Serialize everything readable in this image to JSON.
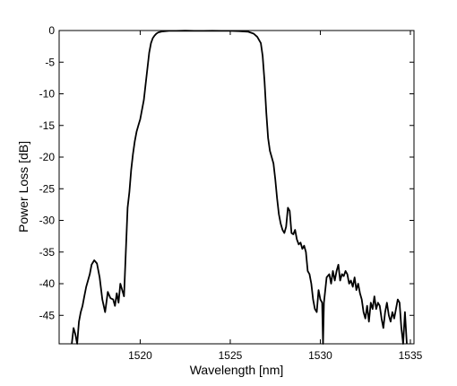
{
  "chart_data": {
    "type": "line",
    "title": "",
    "xlabel": "Wavelength [nm]",
    "ylabel": "Power Loss [dB]",
    "xlim": [
      1515.5,
      1535.2
    ],
    "ylim": [
      -49.5,
      0
    ],
    "xticks": [
      1520,
      1525,
      1530,
      1535
    ],
    "xtick_labels": [
      "1520",
      "1525",
      "1530",
      "1535"
    ],
    "yticks": [
      0,
      -5,
      -10,
      -15,
      -20,
      -25,
      -30,
      -35,
      -40,
      -45
    ],
    "ytick_labels": [
      "0",
      "-5",
      "-10",
      "-15",
      "-20",
      "-25",
      "-30",
      "-35",
      "-40",
      "-45"
    ],
    "grid": false,
    "legend": "none",
    "line_color": "#000000",
    "series": [
      {
        "x": [
          1516.2,
          1516.3,
          1516.4,
          1516.5,
          1516.6,
          1516.7,
          1516.8,
          1516.9,
          1517.0,
          1517.1,
          1517.2,
          1517.3,
          1517.45,
          1517.6,
          1517.75,
          1517.9,
          1518.05,
          1518.2,
          1518.35,
          1518.5,
          1518.6,
          1518.7,
          1518.8,
          1518.9,
          1519.0,
          1519.1,
          1519.2,
          1519.3,
          1519.4,
          1519.5,
          1519.6,
          1519.7,
          1519.8,
          1519.9,
          1520.0,
          1520.1,
          1520.2,
          1520.3,
          1520.4,
          1520.5,
          1520.6,
          1520.7,
          1520.8,
          1520.9,
          1521.0,
          1521.2,
          1521.4,
          1521.6,
          1521.8,
          1522.0,
          1522.5,
          1523.0,
          1523.5,
          1524.0,
          1524.5,
          1525.0,
          1525.5,
          1526.0,
          1526.3,
          1526.5,
          1526.7,
          1526.8,
          1526.9,
          1527.0,
          1527.1,
          1527.2,
          1527.3,
          1527.4,
          1527.5,
          1527.6,
          1527.7,
          1527.8,
          1527.9,
          1528.0,
          1528.1,
          1528.2,
          1528.3,
          1528.4,
          1528.5,
          1528.6,
          1528.7,
          1528.8,
          1528.9,
          1529.0,
          1529.1,
          1529.2,
          1529.3,
          1529.4,
          1529.5,
          1529.6,
          1529.7,
          1529.8,
          1529.9,
          1530.0,
          1530.1,
          1530.15,
          1530.2,
          1530.35,
          1530.5,
          1530.6,
          1530.7,
          1530.8,
          1530.9,
          1531.0,
          1531.1,
          1531.2,
          1531.3,
          1531.4,
          1531.5,
          1531.6,
          1531.7,
          1531.8,
          1531.9,
          1532.0,
          1532.1,
          1532.2,
          1532.3,
          1532.4,
          1532.5,
          1532.6,
          1532.7,
          1532.8,
          1532.9,
          1533.0,
          1533.1,
          1533.2,
          1533.3,
          1533.4,
          1533.5,
          1533.6,
          1533.7,
          1533.8,
          1533.9,
          1534.0,
          1534.1,
          1534.2,
          1534.3,
          1534.4,
          1534.5,
          1534.6,
          1534.7,
          1534.8
        ],
        "y": [
          -49.5,
          -47.0,
          -48.0,
          -49.5,
          -46.0,
          -44.5,
          -43.5,
          -42.0,
          -40.5,
          -39.5,
          -38.5,
          -37.0,
          -36.3,
          -36.8,
          -39.0,
          -42.5,
          -44.5,
          -41.3,
          -42.3,
          -42.5,
          -43.5,
          -41.5,
          -43.0,
          -40.0,
          -41.0,
          -42.0,
          -35.0,
          -28.0,
          -25.5,
          -22.0,
          -19.5,
          -17.5,
          -16.0,
          -15.0,
          -14.0,
          -12.5,
          -11.0,
          -8.5,
          -6.0,
          -3.5,
          -2.0,
          -1.2,
          -0.8,
          -0.5,
          -0.3,
          -0.15,
          -0.1,
          -0.05,
          -0.05,
          -0.05,
          -0.03,
          -0.05,
          -0.06,
          -0.04,
          -0.05,
          -0.05,
          -0.1,
          -0.2,
          -0.5,
          -1.0,
          -2.0,
          -4.0,
          -8.0,
          -13.0,
          -17.0,
          -19.0,
          -20.0,
          -21.0,
          -23.5,
          -26.5,
          -29.0,
          -30.5,
          -31.5,
          -32.0,
          -31.0,
          -28.0,
          -28.5,
          -32.0,
          -32.2,
          -31.5,
          -33.0,
          -33.8,
          -33.5,
          -34.5,
          -34.0,
          -35.0,
          -38.0,
          -38.5,
          -40.0,
          -42.5,
          -44.0,
          -44.5,
          -41.0,
          -42.5,
          -43.0,
          -49.5,
          -43.0,
          -39.0,
          -38.5,
          -40.0,
          -38.0,
          -39.5,
          -38.0,
          -37.0,
          -39.5,
          -38.5,
          -38.8,
          -38.0,
          -38.5,
          -40.0,
          -39.5,
          -40.5,
          -39.0,
          -41.0,
          -40.0,
          -41.5,
          -42.5,
          -44.5,
          -45.5,
          -43.5,
          -46.0,
          -43.0,
          -44.0,
          -42.0,
          -44.0,
          -43.0,
          -43.5,
          -45.5,
          -47.0,
          -44.5,
          -43.0,
          -45.0,
          -46.0,
          -44.5,
          -45.5,
          -44.0,
          -42.5,
          -43.0,
          -47.0,
          -49.5,
          -44.5,
          -49.5
        ]
      }
    ]
  }
}
